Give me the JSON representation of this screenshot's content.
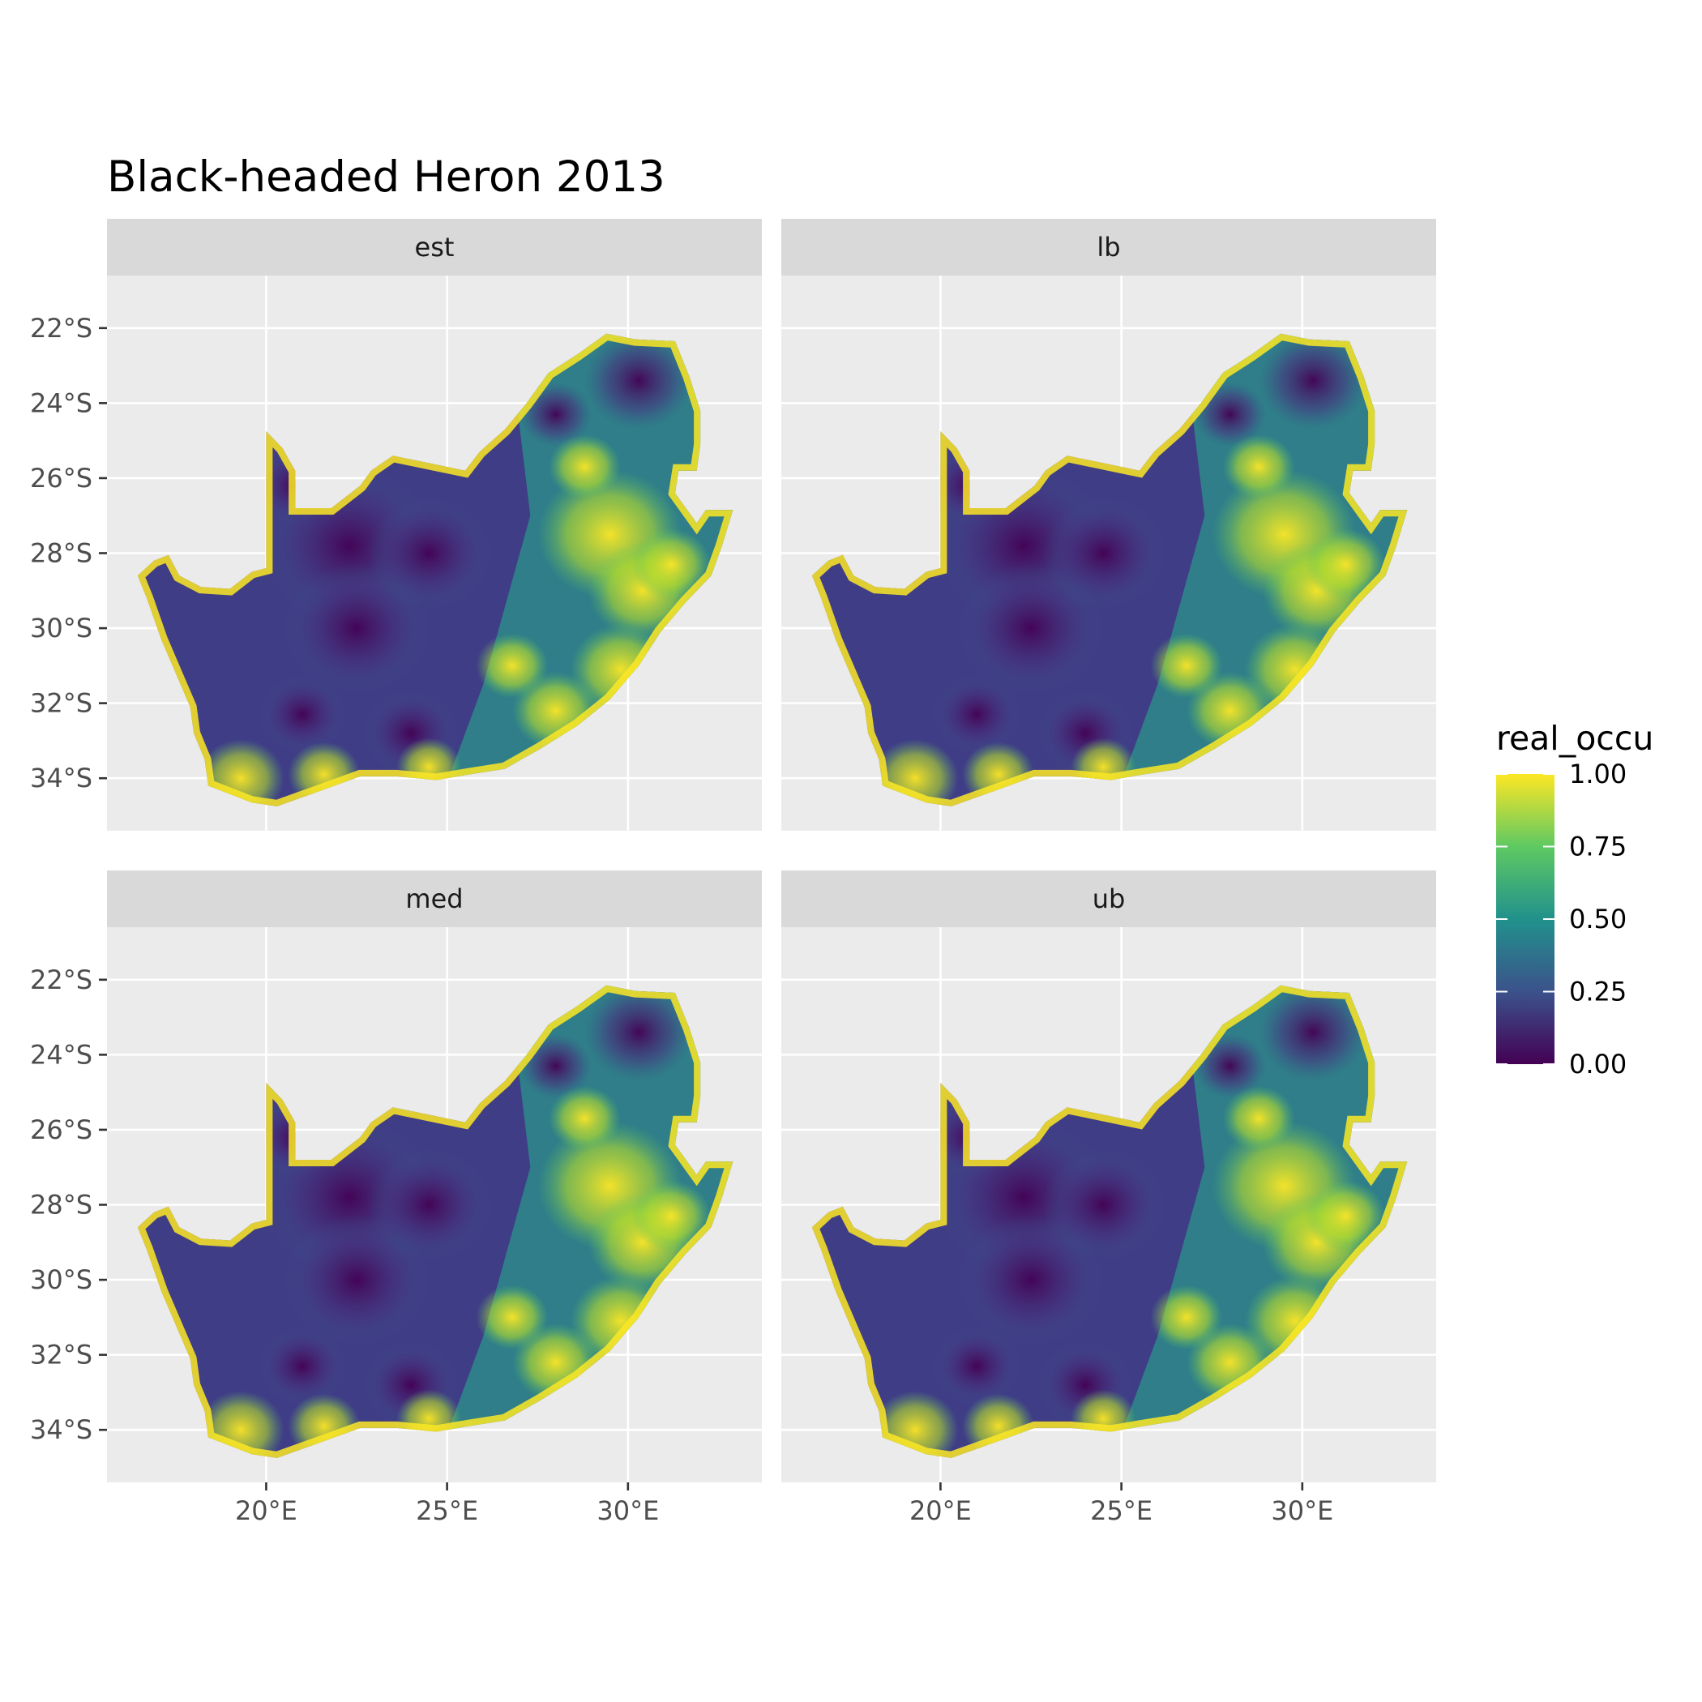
{
  "chart_data": {
    "type": "heatmap",
    "title": "Black-headed Heron 2013",
    "subtitle": "",
    "xlabel": "",
    "ylabel": "",
    "xlim": [
      15.6,
      33.7
    ],
    "ylim": [
      -35.4,
      -20.6
    ],
    "x_ticks": [
      {
        "value": 20,
        "label": "20°E"
      },
      {
        "value": 25,
        "label": "25°E"
      },
      {
        "value": 30,
        "label": "30°E"
      }
    ],
    "y_ticks": [
      {
        "value": -22,
        "label": "22°S"
      },
      {
        "value": -24,
        "label": "24°S"
      },
      {
        "value": -26,
        "label": "26°S"
      },
      {
        "value": -28,
        "label": "28°S"
      },
      {
        "value": -30,
        "label": "30°S"
      },
      {
        "value": -32,
        "label": "32°S"
      },
      {
        "value": -34,
        "label": "34°S"
      }
    ],
    "grid": true,
    "facets": [
      {
        "label": "est"
      },
      {
        "label": "lb"
      },
      {
        "label": "med"
      },
      {
        "label": "ub"
      }
    ],
    "legend": {
      "title": "real_occu",
      "position": "right",
      "min": 0,
      "max": 1,
      "ticks": [
        {
          "value": 0.0,
          "label": "0.00"
        },
        {
          "value": 0.25,
          "label": "0.25"
        },
        {
          "value": 0.5,
          "label": "0.50"
        },
        {
          "value": 0.75,
          "label": "0.75"
        },
        {
          "value": 1.0,
          "label": "1.00"
        }
      ],
      "colors": [
        "#440154",
        "#3b528b",
        "#21918c",
        "#5ec962",
        "#fde725"
      ]
    },
    "colors": {
      "panel_bg": "#ebebeb",
      "strip_bg": "#d9d9d9",
      "grid": "#ffffff"
    }
  }
}
